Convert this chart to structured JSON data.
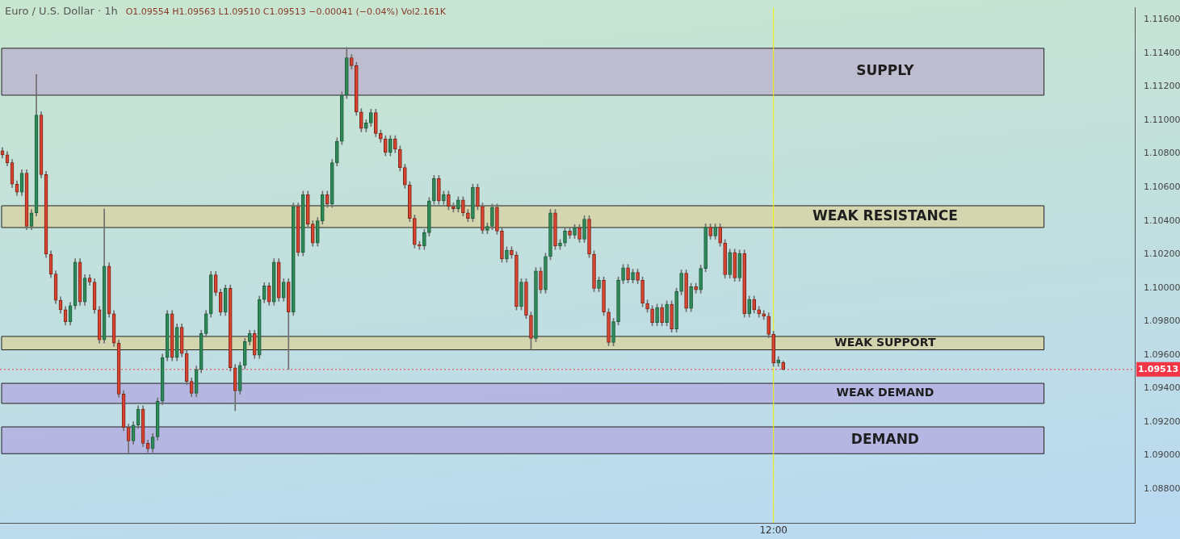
{
  "chart_data": {
    "type": "candlestick",
    "title": "Euro / U.S. Dollar · 1h",
    "subtitle": "O1.09554 H1.09563 L1.09510 C1.09513 −0.00041 (−0.04%) Vol2.161K",
    "categories": [
      null,
      null,
      null,
      null,
      null,
      null,
      null,
      null,
      null,
      null,
      null,
      null,
      null,
      null,
      null,
      null,
      null,
      null,
      null,
      null,
      null,
      null,
      null,
      null,
      null,
      null,
      null,
      null,
      null,
      null,
      null,
      null,
      null,
      null,
      null,
      null,
      null,
      null,
      null,
      null,
      null,
      null,
      null,
      null,
      null,
      null,
      null,
      null,
      null,
      null,
      null,
      null,
      null,
      null,
      null,
      null,
      null,
      null,
      null,
      null,
      null,
      null,
      null,
      null,
      null,
      null,
      null,
      null,
      null,
      null,
      null,
      null,
      null,
      null,
      null,
      null,
      null,
      null,
      null,
      null,
      null,
      null,
      null,
      null,
      null,
      null,
      null,
      null,
      null,
      null,
      null,
      null,
      null,
      null,
      null,
      null,
      null,
      null,
      null,
      null,
      null,
      null,
      null,
      null,
      null,
      null,
      null,
      null,
      null,
      null,
      null,
      null,
      null,
      null,
      null,
      null,
      null,
      null,
      null,
      null,
      null,
      null,
      null,
      null,
      null,
      null,
      null,
      null,
      null,
      null,
      null,
      null,
      null,
      null,
      null,
      null,
      null,
      null,
      null,
      null,
      null,
      null,
      null,
      null,
      null,
      null,
      null,
      null,
      null,
      null,
      null,
      null,
      null,
      null,
      null,
      null,
      null,
      null,
      null,
      "12:00",
      null,
      null,
      null,
      null,
      null,
      null,
      null,
      null,
      null,
      null,
      null,
      null,
      null,
      null,
      null,
      null,
      null,
      null,
      null,
      null,
      null,
      null,
      null,
      null,
      null,
      null,
      null,
      null,
      null,
      null,
      null,
      null,
      null,
      null,
      null,
      null,
      null,
      null,
      null,
      null,
      null,
      null,
      null,
      null,
      null,
      null,
      null,
      null,
      null,
      null,
      null,
      null,
      null,
      null,
      null,
      null,
      null,
      null,
      null,
      null,
      null,
      null,
      null,
      null,
      null,
      null,
      null,
      null,
      null,
      null,
      null,
      null,
      null,
      null
    ],
    "ohlc": [
      [
        1.10818,
        1.10838,
        1.10774,
        1.10794
      ],
      [
        1.10794,
        1.10814,
        1.10727,
        1.10747
      ],
      [
        1.10747,
        1.10767,
        1.10599,
        1.10619
      ],
      [
        1.10619,
        1.10639,
        1.10551,
        1.10571
      ],
      [
        1.10571,
        1.10705,
        1.10551,
        1.10685
      ],
      [
        1.10685,
        1.10705,
        1.10347,
        1.10367
      ],
      [
        1.10367,
        1.10468,
        1.10347,
        1.10448
      ],
      [
        1.10448,
        1.11273,
        1.10428,
        1.11031
      ],
      [
        1.11031,
        1.11051,
        1.10656,
        1.10676
      ],
      [
        1.10676,
        1.10696,
        1.10181,
        1.10201
      ],
      [
        1.10201,
        1.10221,
        1.10062,
        1.10082
      ],
      [
        1.10082,
        1.10102,
        1.09906,
        1.09926
      ],
      [
        1.09926,
        1.09946,
        1.09849,
        1.09869
      ],
      [
        1.09869,
        1.09889,
        1.09778,
        1.09798
      ],
      [
        1.09798,
        1.09913,
        1.09778,
        1.09893
      ],
      [
        1.09893,
        1.10174,
        1.09873,
        1.10154
      ],
      [
        1.10154,
        1.10174,
        1.09896,
        1.09916
      ],
      [
        1.09916,
        1.10079,
        1.09896,
        1.10059
      ],
      [
        1.10059,
        1.10079,
        1.10015,
        1.10035
      ],
      [
        1.10035,
        1.10055,
        1.09849,
        1.09869
      ],
      [
        1.09869,
        1.09889,
        1.09669,
        1.09689
      ],
      [
        1.09689,
        1.10472,
        1.09669,
        1.1013
      ],
      [
        1.1013,
        1.1015,
        1.09825,
        1.09845
      ],
      [
        1.09845,
        1.09865,
        1.0965,
        1.0967
      ],
      [
        1.0967,
        1.0969,
        1.09346,
        1.09366
      ],
      [
        1.09366,
        1.09386,
        1.09147,
        1.09167
      ],
      [
        1.09167,
        1.09187,
        1.09015,
        1.09086
      ],
      [
        1.09086,
        1.09201,
        1.09066,
        1.09181
      ],
      [
        1.09181,
        1.09296,
        1.09161,
        1.09276
      ],
      [
        1.09276,
        1.09296,
        1.09052,
        1.09072
      ],
      [
        1.09072,
        1.09092,
        1.09019,
        1.09039
      ],
      [
        1.09039,
        1.0913,
        1.09019,
        1.0911
      ],
      [
        1.0911,
        1.09343,
        1.0909,
        1.09323
      ],
      [
        1.09323,
        1.09604,
        1.09303,
        1.09584
      ],
      [
        1.09584,
        1.09865,
        1.09564,
        1.09845
      ],
      [
        1.09845,
        1.09865,
        1.09564,
        1.09584
      ],
      [
        1.09584,
        1.09785,
        1.09564,
        1.09765
      ],
      [
        1.09765,
        1.09785,
        1.09588,
        1.09608
      ],
      [
        1.09608,
        1.09628,
        1.09422,
        1.09442
      ],
      [
        1.09442,
        1.09462,
        1.09351,
        1.09371
      ],
      [
        1.09371,
        1.09533,
        1.09351,
        1.09513
      ],
      [
        1.09513,
        1.09747,
        1.09493,
        1.09727
      ],
      [
        1.09727,
        1.09865,
        1.09707,
        1.09845
      ],
      [
        1.09845,
        1.10098,
        1.09825,
        1.10078
      ],
      [
        1.10078,
        1.10098,
        1.09953,
        1.09973
      ],
      [
        1.09973,
        1.09993,
        1.09835,
        1.09855
      ],
      [
        1.09855,
        1.10017,
        1.09835,
        1.09997
      ],
      [
        1.09997,
        1.10017,
        1.09503,
        1.09523
      ],
      [
        1.09523,
        1.09543,
        1.09266,
        1.09385
      ],
      [
        1.09385,
        1.09557,
        1.09365,
        1.09537
      ],
      [
        1.09537,
        1.09699,
        1.09517,
        1.09679
      ],
      [
        1.09679,
        1.09747,
        1.09659,
        1.09727
      ],
      [
        1.09727,
        1.09747,
        1.09578,
        1.09598
      ],
      [
        1.09598,
        1.09951,
        1.09578,
        1.09931
      ],
      [
        1.09931,
        1.10031,
        1.09911,
        1.10011
      ],
      [
        1.10011,
        1.10031,
        1.09896,
        1.09916
      ],
      [
        1.09916,
        1.10174,
        1.09896,
        1.10154
      ],
      [
        1.10154,
        1.10174,
        1.0992,
        1.0994
      ],
      [
        1.0994,
        1.10055,
        1.0992,
        1.10035
      ],
      [
        1.10035,
        1.10055,
        1.09513,
        1.09855
      ],
      [
        1.09855,
        1.10506,
        1.09835,
        1.10486
      ],
      [
        1.10486,
        1.10506,
        1.10191,
        1.10211
      ],
      [
        1.10211,
        1.10577,
        1.10191,
        1.10557
      ],
      [
        1.10557,
        1.10577,
        1.10361,
        1.10381
      ],
      [
        1.10381,
        1.10401,
        1.10248,
        1.10268
      ],
      [
        1.10268,
        1.1042,
        1.10248,
        1.104
      ],
      [
        1.104,
        1.10577,
        1.1038,
        1.10557
      ],
      [
        1.10557,
        1.10577,
        1.1048,
        1.105
      ],
      [
        1.105,
        1.10767,
        1.1048,
        1.10747
      ],
      [
        1.10747,
        1.10895,
        1.10727,
        1.10875
      ],
      [
        1.10875,
        1.1117,
        1.10855,
        1.1115
      ],
      [
        1.1115,
        1.11435,
        1.1113,
        1.11373
      ],
      [
        1.11373,
        1.11393,
        1.11306,
        1.11326
      ],
      [
        1.11326,
        1.11346,
        1.1103,
        1.1105
      ],
      [
        1.1105,
        1.1107,
        1.10931,
        1.10951
      ],
      [
        1.10951,
        1.11004,
        1.10931,
        1.10984
      ],
      [
        1.10984,
        1.11066,
        1.10964,
        1.11046
      ],
      [
        1.11046,
        1.11066,
        1.10902,
        1.10922
      ],
      [
        1.10922,
        1.10942,
        1.10869,
        1.10889
      ],
      [
        1.10889,
        1.10909,
        1.10788,
        1.10808
      ],
      [
        1.10808,
        1.10909,
        1.10788,
        1.10889
      ],
      [
        1.10889,
        1.10909,
        1.10807,
        1.10827
      ],
      [
        1.10827,
        1.10847,
        1.10698,
        1.10718
      ],
      [
        1.10718,
        1.10738,
        1.10594,
        1.10614
      ],
      [
        1.10614,
        1.10634,
        1.10395,
        1.10415
      ],
      [
        1.10415,
        1.10435,
        1.10238,
        1.10258
      ],
      [
        1.10258,
        1.10278,
        1.10229,
        1.10249
      ],
      [
        1.10249,
        1.10349,
        1.10229,
        1.10329
      ],
      [
        1.10329,
        1.10539,
        1.10309,
        1.10519
      ],
      [
        1.10519,
        1.10672,
        1.10499,
        1.10652
      ],
      [
        1.10652,
        1.10672,
        1.10499,
        1.10519
      ],
      [
        1.10519,
        1.10577,
        1.10499,
        1.10557
      ],
      [
        1.10557,
        1.10577,
        1.10466,
        1.10486
      ],
      [
        1.10486,
        1.10506,
        1.10452,
        1.10472
      ],
      [
        1.10472,
        1.10544,
        1.10452,
        1.10524
      ],
      [
        1.10524,
        1.10544,
        1.10428,
        1.10448
      ],
      [
        1.10448,
        1.10468,
        1.10395,
        1.10415
      ],
      [
        1.10415,
        1.1062,
        1.10395,
        1.106
      ],
      [
        1.106,
        1.1062,
        1.10466,
        1.10486
      ],
      [
        1.10486,
        1.10506,
        1.10323,
        1.10343
      ],
      [
        1.10343,
        1.10387,
        1.10323,
        1.10367
      ],
      [
        1.10367,
        1.10501,
        1.10347,
        1.10481
      ],
      [
        1.10481,
        1.10501,
        1.10319,
        1.10339
      ],
      [
        1.10339,
        1.10359,
        1.10153,
        1.10173
      ],
      [
        1.10173,
        1.10245,
        1.10153,
        1.10225
      ],
      [
        1.10225,
        1.10245,
        1.10176,
        1.10196
      ],
      [
        1.10196,
        1.10216,
        1.09868,
        1.09888
      ],
      [
        1.09888,
        1.10055,
        1.09868,
        1.10035
      ],
      [
        1.10035,
        1.10055,
        1.09816,
        1.09836
      ],
      [
        1.09836,
        1.09856,
        1.09632,
        1.09698
      ],
      [
        1.09698,
        1.10121,
        1.09678,
        1.10101
      ],
      [
        1.10101,
        1.10121,
        1.09968,
        1.09988
      ],
      [
        1.09988,
        1.10207,
        1.09968,
        1.10187
      ],
      [
        1.10187,
        1.10468,
        1.10167,
        1.10448
      ],
      [
        1.10448,
        1.10468,
        1.10229,
        1.10249
      ],
      [
        1.10249,
        1.10288,
        1.10229,
        1.10268
      ],
      [
        1.10268,
        1.10359,
        1.10248,
        1.10339
      ],
      [
        1.10339,
        1.10359,
        1.10295,
        1.10315
      ],
      [
        1.10315,
        1.10378,
        1.10295,
        1.10358
      ],
      [
        1.10358,
        1.10378,
        1.10271,
        1.10291
      ],
      [
        1.10291,
        1.1043,
        1.10271,
        1.1041
      ],
      [
        1.1041,
        1.1043,
        1.10181,
        1.10201
      ],
      [
        1.10201,
        1.10221,
        1.09977,
        1.09997
      ],
      [
        1.09997,
        1.10065,
        1.09977,
        1.10045
      ],
      [
        1.10045,
        1.10065,
        1.09835,
        1.09855
      ],
      [
        1.09855,
        1.09875,
        1.09654,
        1.09674
      ],
      [
        1.09674,
        1.09818,
        1.09654,
        1.09798
      ],
      [
        1.09798,
        1.10065,
        1.09778,
        1.10045
      ],
      [
        1.10045,
        1.1014,
        1.10025,
        1.1012
      ],
      [
        1.1012,
        1.1014,
        1.10029,
        1.10049
      ],
      [
        1.10049,
        1.10112,
        1.10029,
        1.10092
      ],
      [
        1.10092,
        1.10112,
        1.10025,
        1.10045
      ],
      [
        1.10045,
        1.10065,
        1.09887,
        1.09907
      ],
      [
        1.09907,
        1.09927,
        1.09854,
        1.09874
      ],
      [
        1.09874,
        1.09894,
        1.09773,
        1.09793
      ],
      [
        1.09793,
        1.09903,
        1.09773,
        1.09883
      ],
      [
        1.09883,
        1.09903,
        1.09773,
        1.09793
      ],
      [
        1.09793,
        1.09922,
        1.09773,
        1.09902
      ],
      [
        1.09902,
        1.09922,
        1.09735,
        1.09755
      ],
      [
        1.09755,
        1.09998,
        1.09735,
        1.09978
      ],
      [
        1.09978,
        1.10107,
        1.09958,
        1.10087
      ],
      [
        1.10087,
        1.10107,
        1.09858,
        1.09878
      ],
      [
        1.09878,
        1.10027,
        1.09858,
        1.10007
      ],
      [
        1.10007,
        1.10027,
        1.09968,
        1.09988
      ],
      [
        1.09988,
        1.10136,
        1.09968,
        1.10116
      ],
      [
        1.10116,
        1.10382,
        1.10096,
        1.10362
      ],
      [
        1.10362,
        1.10382,
        1.1029,
        1.1031
      ],
      [
        1.1031,
        1.10382,
        1.1029,
        1.10362
      ],
      [
        1.10362,
        1.10382,
        1.10248,
        1.10268
      ],
      [
        1.10268,
        1.10288,
        1.10058,
        1.10078
      ],
      [
        1.10078,
        1.10231,
        1.10058,
        1.10211
      ],
      [
        1.10211,
        1.10231,
        1.10039,
        1.10059
      ],
      [
        1.10059,
        1.10226,
        1.10039,
        1.10206
      ],
      [
        1.10206,
        1.10226,
        1.09825,
        1.09845
      ],
      [
        1.09845,
        1.09951,
        1.09825,
        1.09931
      ],
      [
        1.09931,
        1.09951,
        1.09849,
        1.09869
      ],
      [
        1.09869,
        1.09889,
        1.09825,
        1.09845
      ],
      [
        1.09845,
        1.09865,
        1.09811,
        1.09831
      ],
      [
        1.09831,
        1.09851,
        1.09702,
        1.09722
      ],
      [
        1.09722,
        1.09742,
        1.09531,
        1.09551
      ],
      [
        1.09551,
        1.0959,
        1.09531,
        1.0957
      ],
      [
        1.09554,
        1.09563,
        1.0951,
        1.09513
      ],
      null,
      null,
      null,
      null,
      null,
      null,
      null,
      null,
      null,
      null,
      null,
      null,
      null,
      null,
      null,
      null,
      null,
      null,
      null,
      null,
      null,
      null,
      null,
      null,
      null,
      null,
      null,
      null,
      null,
      null,
      null,
      null,
      null,
      null,
      null,
      null,
      null,
      null,
      null,
      null,
      null,
      null,
      null,
      null,
      null,
      null,
      null,
      null,
      null,
      null,
      null,
      null,
      null,
      null,
      null,
      null,
      null,
      null,
      null,
      null,
      null,
      null,
      null,
      null,
      null,
      null,
      null,
      null,
      null,
      null,
      null,
      null
    ],
    "ylim": [
      1.08597,
      1.11672
    ],
    "yticks": [
      {
        "value": 1.088,
        "label": "1.08800"
      },
      {
        "value": 1.09,
        "label": "1.09000"
      },
      {
        "value": 1.092,
        "label": "1.09200"
      },
      {
        "value": 1.094,
        "label": "1.09400"
      },
      {
        "value": 1.096,
        "label": "1.09600"
      },
      {
        "value": 1.098,
        "label": "1.09800"
      },
      {
        "value": 1.1,
        "label": "1.10000"
      },
      {
        "value": 1.102,
        "label": "1.10200"
      },
      {
        "value": 1.104,
        "label": "1.10400"
      },
      {
        "value": 1.106,
        "label": "1.10600"
      },
      {
        "value": 1.108,
        "label": "1.10800"
      },
      {
        "value": 1.11,
        "label": "1.11000"
      },
      {
        "value": 1.112,
        "label": "1.11200"
      },
      {
        "value": 1.114,
        "label": "1.11400"
      },
      {
        "value": 1.116,
        "label": "1.11600"
      }
    ],
    "bands": [
      {
        "axis": "y",
        "from": 1.1115,
        "to": 1.1143,
        "label": "SUPPLY",
        "color": "#bcb6cf"
      },
      {
        "axis": "y",
        "from": 1.1036,
        "to": 1.1049,
        "label": "WEAK RESISTANCE",
        "color": "#d6d3a6"
      },
      {
        "axis": "y",
        "from": 1.0963,
        "to": 1.0971,
        "label": "WEAK SUPPORT",
        "color": "#d6d3a6"
      },
      {
        "axis": "y",
        "from": 1.0931,
        "to": 1.0943,
        "label": "WEAK DEMAND",
        "color": "#b4b0e0"
      },
      {
        "axis": "y",
        "from": 1.0901,
        "to": 1.0917,
        "label": "DEMAND",
        "color": "#b4b0e0"
      }
    ],
    "ref_lines": [
      {
        "axis": "x",
        "value": "12:00",
        "color": "#f5f500",
        "line_style": "solid"
      },
      {
        "axis": "y",
        "value": 1.09513,
        "label": "1.09513",
        "color": "#f23645",
        "line_style": "dotted"
      }
    ]
  }
}
